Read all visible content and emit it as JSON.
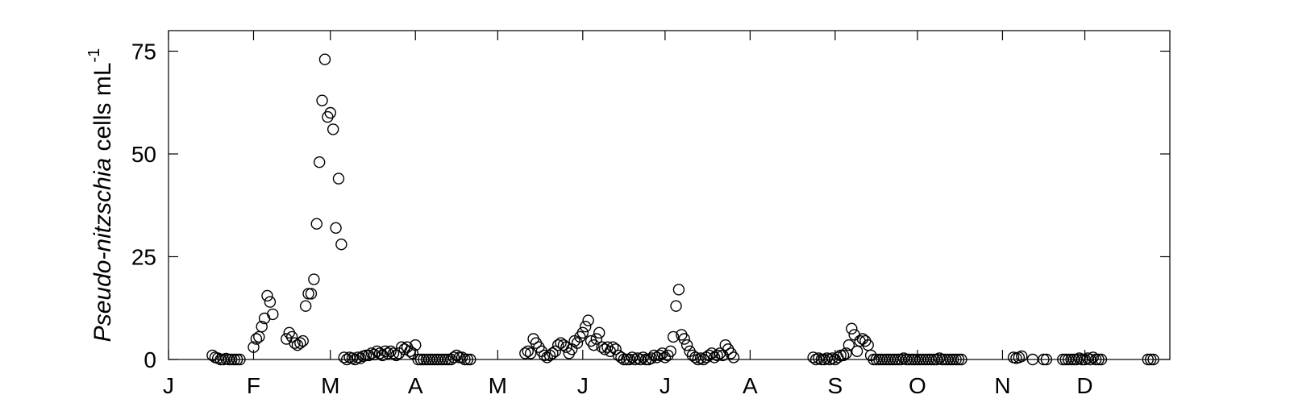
{
  "chart_data": {
    "type": "scatter",
    "title": "",
    "ylabel": {
      "italic": "Pseudo-nitzschia",
      "rest": " cells mL",
      "superscript": "-1"
    },
    "xlabel": "",
    "xlim": [
      0,
      365
    ],
    "ylim": [
      0,
      80
    ],
    "yticks": [
      0,
      25,
      50,
      75
    ],
    "xticks": [
      {
        "label": "J",
        "day": 0
      },
      {
        "label": "F",
        "day": 31
      },
      {
        "label": "M",
        "day": 59
      },
      {
        "label": "A",
        "day": 90
      },
      {
        "label": "M",
        "day": 120
      },
      {
        "label": "J",
        "day": 151
      },
      {
        "label": "J",
        "day": 181
      },
      {
        "label": "A",
        "day": 212
      },
      {
        "label": "S",
        "day": 243
      },
      {
        "label": "O",
        "day": 273
      },
      {
        "label": "N",
        "day": 304
      },
      {
        "label": "D",
        "day": 334
      }
    ],
    "grid": false,
    "marker": "open-circle",
    "points": [
      [
        16,
        1
      ],
      [
        17,
        0.5
      ],
      [
        18,
        0.3
      ],
      [
        19,
        0
      ],
      [
        20,
        0
      ],
      [
        21,
        0.2
      ],
      [
        22,
        0
      ],
      [
        23,
        0
      ],
      [
        24,
        0
      ],
      [
        25,
        0
      ],
      [
        26,
        0
      ],
      [
        31,
        3
      ],
      [
        32,
        5
      ],
      [
        33,
        5.5
      ],
      [
        34,
        8
      ],
      [
        35,
        10
      ],
      [
        36,
        15.5
      ],
      [
        37,
        14
      ],
      [
        38,
        11
      ],
      [
        43,
        5
      ],
      [
        44,
        6.5
      ],
      [
        45,
        5.5
      ],
      [
        46,
        4
      ],
      [
        47,
        3.5
      ],
      [
        48,
        4
      ],
      [
        49,
        4.5
      ],
      [
        50,
        13
      ],
      [
        51,
        16
      ],
      [
        52,
        16
      ],
      [
        53,
        19.5
      ],
      [
        54,
        33
      ],
      [
        55,
        48
      ],
      [
        56,
        63
      ],
      [
        57,
        73
      ],
      [
        58,
        59
      ],
      [
        59,
        60
      ],
      [
        60,
        56
      ],
      [
        61,
        32
      ],
      [
        62,
        44
      ],
      [
        63,
        28
      ],
      [
        64,
        0.5
      ],
      [
        65,
        0
      ],
      [
        66,
        0.5
      ],
      [
        67,
        0.3
      ],
      [
        68,
        0
      ],
      [
        69,
        0.5
      ],
      [
        70,
        0.3
      ],
      [
        71,
        0.8
      ],
      [
        72,
        1
      ],
      [
        73,
        1
      ],
      [
        74,
        1.5
      ],
      [
        75,
        1.2
      ],
      [
        76,
        2
      ],
      [
        77,
        1.5
      ],
      [
        78,
        1
      ],
      [
        79,
        2
      ],
      [
        80,
        1.5
      ],
      [
        81,
        2
      ],
      [
        82,
        1.5
      ],
      [
        83,
        1
      ],
      [
        84,
        1.5
      ],
      [
        85,
        3
      ],
      [
        86,
        2.5
      ],
      [
        87,
        3
      ],
      [
        88,
        2
      ],
      [
        89,
        1.5
      ],
      [
        90,
        3.5
      ],
      [
        91,
        0
      ],
      [
        92,
        0
      ],
      [
        93,
        0
      ],
      [
        94,
        0
      ],
      [
        95,
        0
      ],
      [
        96,
        0
      ],
      [
        97,
        0
      ],
      [
        98,
        0
      ],
      [
        99,
        0
      ],
      [
        100,
        0
      ],
      [
        101,
        0
      ],
      [
        102,
        0
      ],
      [
        103,
        0
      ],
      [
        104,
        0.5
      ],
      [
        105,
        1
      ],
      [
        106,
        0.5
      ],
      [
        107,
        0.5
      ],
      [
        108,
        0
      ],
      [
        109,
        0
      ],
      [
        110,
        0
      ],
      [
        130,
        1.5
      ],
      [
        131,
        2
      ],
      [
        132,
        1.5
      ],
      [
        133,
        5
      ],
      [
        134,
        4
      ],
      [
        135,
        3
      ],
      [
        136,
        2
      ],
      [
        137,
        1
      ],
      [
        138,
        0.5
      ],
      [
        139,
        1
      ],
      [
        140,
        1.5
      ],
      [
        141,
        2
      ],
      [
        142,
        3.5
      ],
      [
        143,
        4
      ],
      [
        144,
        3.5
      ],
      [
        145,
        3
      ],
      [
        146,
        1.5
      ],
      [
        147,
        2.5
      ],
      [
        148,
        4.5
      ],
      [
        149,
        4
      ],
      [
        150,
        5.5
      ],
      [
        151,
        6.5
      ],
      [
        152,
        8
      ],
      [
        153,
        9.5
      ],
      [
        154,
        4.5
      ],
      [
        155,
        3.5
      ],
      [
        156,
        5
      ],
      [
        157,
        6.5
      ],
      [
        158,
        3
      ],
      [
        159,
        2.5
      ],
      [
        160,
        3
      ],
      [
        161,
        2
      ],
      [
        162,
        3
      ],
      [
        163,
        2.5
      ],
      [
        164,
        1
      ],
      [
        165,
        0.5
      ],
      [
        166,
        0
      ],
      [
        167,
        0
      ],
      [
        168,
        0
      ],
      [
        169,
        0.5
      ],
      [
        170,
        0
      ],
      [
        171,
        0.3
      ],
      [
        172,
        0
      ],
      [
        173,
        0.5
      ],
      [
        174,
        0
      ],
      [
        175,
        0
      ],
      [
        176,
        0.3
      ],
      [
        177,
        1
      ],
      [
        178,
        0.5
      ],
      [
        179,
        1
      ],
      [
        180,
        1.5
      ],
      [
        181,
        0.5
      ],
      [
        182,
        1
      ],
      [
        183,
        2
      ],
      [
        184,
        5.5
      ],
      [
        185,
        13
      ],
      [
        186,
        17
      ],
      [
        187,
        6
      ],
      [
        188,
        5
      ],
      [
        189,
        3.5
      ],
      [
        190,
        2
      ],
      [
        191,
        1
      ],
      [
        192,
        0.5
      ],
      [
        193,
        0
      ],
      [
        194,
        0.3
      ],
      [
        195,
        0
      ],
      [
        196,
        0.5
      ],
      [
        197,
        1
      ],
      [
        198,
        1.5
      ],
      [
        199,
        0.5
      ],
      [
        200,
        1
      ],
      [
        201,
        1.5
      ],
      [
        202,
        1
      ],
      [
        203,
        3.5
      ],
      [
        204,
        2.5
      ],
      [
        205,
        1.5
      ],
      [
        206,
        0.5
      ],
      [
        235,
        0.5
      ],
      [
        236,
        0
      ],
      [
        237,
        0.3
      ],
      [
        238,
        0
      ],
      [
        239,
        0
      ],
      [
        240,
        0.3
      ],
      [
        241,
        0
      ],
      [
        242,
        0.3
      ],
      [
        243,
        0
      ],
      [
        244,
        0.5
      ],
      [
        245,
        1
      ],
      [
        246,
        1
      ],
      [
        247,
        1.5
      ],
      [
        248,
        3.5
      ],
      [
        249,
        7.5
      ],
      [
        250,
        6
      ],
      [
        251,
        2
      ],
      [
        252,
        4.5
      ],
      [
        253,
        5
      ],
      [
        254,
        4.5
      ],
      [
        255,
        3.5
      ],
      [
        256,
        1
      ],
      [
        257,
        0
      ],
      [
        258,
        0
      ],
      [
        259,
        0
      ],
      [
        260,
        0
      ],
      [
        261,
        0
      ],
      [
        262,
        0
      ],
      [
        263,
        0
      ],
      [
        264,
        0
      ],
      [
        265,
        0
      ],
      [
        266,
        0
      ],
      [
        267,
        0
      ],
      [
        268,
        0.3
      ],
      [
        269,
        0
      ],
      [
        270,
        0
      ],
      [
        271,
        0
      ],
      [
        272,
        0
      ],
      [
        273,
        0
      ],
      [
        274,
        0
      ],
      [
        275,
        0
      ],
      [
        276,
        0
      ],
      [
        277,
        0
      ],
      [
        278,
        0
      ],
      [
        279,
        0
      ],
      [
        280,
        0
      ],
      [
        281,
        0.3
      ],
      [
        282,
        0
      ],
      [
        283,
        0
      ],
      [
        284,
        0
      ],
      [
        285,
        0
      ],
      [
        286,
        0
      ],
      [
        287,
        0
      ],
      [
        288,
        0
      ],
      [
        289,
        0
      ],
      [
        308,
        0.5
      ],
      [
        309,
        0.3
      ],
      [
        310,
        0.5
      ],
      [
        311,
        0.8
      ],
      [
        315,
        0
      ],
      [
        319,
        0
      ],
      [
        320,
        0
      ],
      [
        326,
        0
      ],
      [
        327,
        0
      ],
      [
        328,
        0
      ],
      [
        329,
        0
      ],
      [
        330,
        0
      ],
      [
        331,
        0
      ],
      [
        332,
        0.3
      ],
      [
        333,
        0
      ],
      [
        334,
        0
      ],
      [
        335,
        0.3
      ],
      [
        336,
        0
      ],
      [
        337,
        0.5
      ],
      [
        338,
        0
      ],
      [
        339,
        0
      ],
      [
        340,
        0
      ],
      [
        357,
        0
      ],
      [
        358,
        0
      ],
      [
        359,
        0
      ]
    ]
  }
}
